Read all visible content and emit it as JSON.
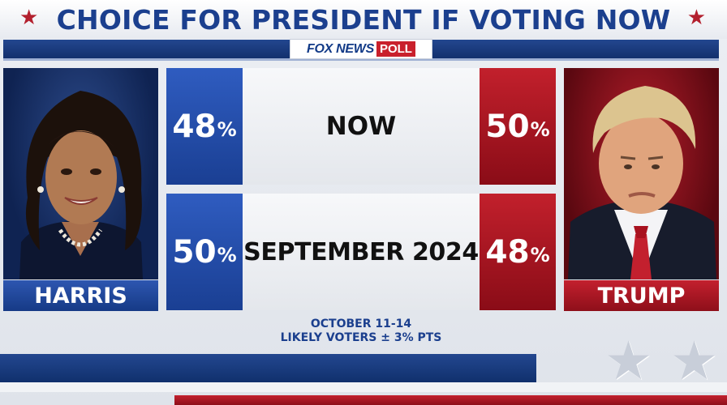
{
  "title": "CHOICE FOR PRESIDENT IF VOTING NOW",
  "source": {
    "brand": "FOX NEWS",
    "tag": "POLL"
  },
  "candidates": [
    {
      "name": "HARRIS",
      "color": "#1f47a0"
    },
    {
      "name": "TRUMP",
      "color": "#b01c28"
    }
  ],
  "chart_data": {
    "type": "table",
    "title": "CHOICE FOR PRESIDENT IF VOTING NOW",
    "columns": [
      "HARRIS",
      "",
      "TRUMP"
    ],
    "rows": [
      {
        "label": "NOW",
        "harris": 48,
        "trump": 50,
        "harris_text": "48",
        "trump_text": "50"
      },
      {
        "label": "SEPTEMBER 2024",
        "harris": 50,
        "trump": 48,
        "harris_text": "50",
        "trump_text": "48"
      }
    ],
    "unit": "%"
  },
  "footnote": {
    "dates": "OCTOBER 11-14",
    "sample": "LIKELY VOTERS ± 3% PTS"
  }
}
